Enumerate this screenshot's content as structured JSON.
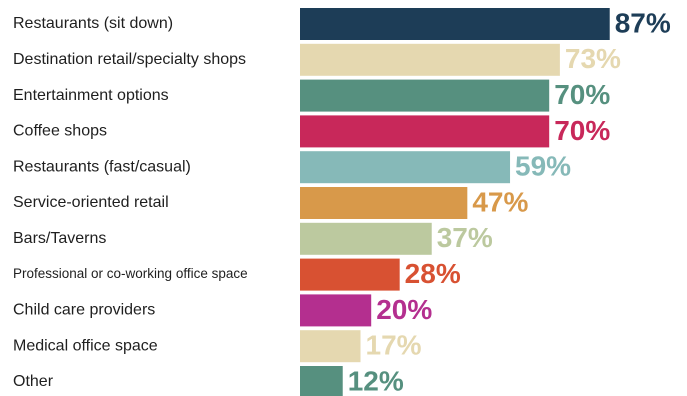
{
  "chart_data": {
    "type": "bar",
    "orientation": "horizontal",
    "title": "",
    "xlabel": "",
    "ylabel": "",
    "xlim": [
      0,
      100
    ],
    "grid": false,
    "legend": "none",
    "categories": [
      "Restaurants (sit down)",
      "Destination retail/specialty shops",
      "Entertainment options",
      "Coffee shops",
      "Restaurants (fast/casual)",
      "Service-oriented retail",
      "Bars/Taverns",
      "Professional or co-working office space",
      "Child care providers",
      "Medical office space",
      "Other"
    ],
    "values": [
      87,
      73,
      70,
      70,
      59,
      47,
      37,
      28,
      20,
      17,
      12
    ],
    "value_labels": [
      "87%",
      "73%",
      "70%",
      "70%",
      "59%",
      "47%",
      "37%",
      "28%",
      "20%",
      "17%",
      "12%"
    ],
    "colors": [
      "#1d3d57",
      "#e5d8b0",
      "#56907f",
      "#c8285a",
      "#86b9b8",
      "#d8994a",
      "#bcc99f",
      "#d85132",
      "#b42f8f",
      "#e5d8b0",
      "#56907f"
    ]
  }
}
